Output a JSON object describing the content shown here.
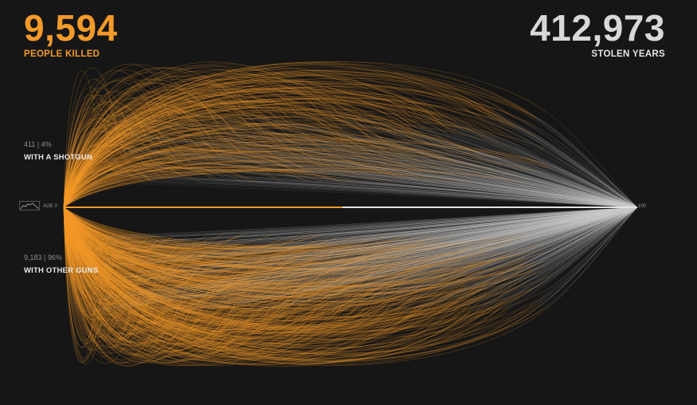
{
  "header": {
    "killed_count": "9,594",
    "killed_label": "PEOPLE KILLED",
    "stolen_years": "412,973",
    "stolen_label": "STOLEN YEARS"
  },
  "groups": [
    {
      "count_text": "411 | 4%",
      "name": "WITH A SHOTGUN"
    },
    {
      "count_text": "9,183 | 96%",
      "name": "WITH OTHER GUNS"
    }
  ],
  "axis": {
    "start_label": "AGE 0",
    "end_label": "100"
  },
  "colors": {
    "background": "#161616",
    "killed_orange": "#f39a2a",
    "stolen_gray": "#d0d0d0"
  },
  "chart_data": {
    "type": "arc",
    "x_domain": [
      0,
      100
    ],
    "series": [
      {
        "name": "WITH A SHOTGUN",
        "count": 411,
        "percent": 4
      },
      {
        "name": "WITH OTHER GUNS",
        "count": 9183,
        "percent": 96
      }
    ],
    "totals": {
      "people_killed": 9594,
      "stolen_years": 412973
    }
  }
}
